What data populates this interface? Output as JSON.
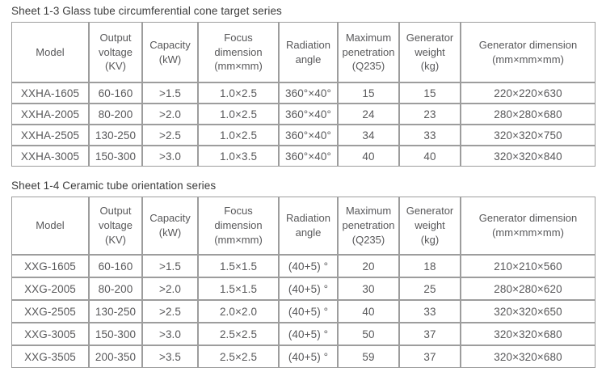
{
  "colors": {
    "border": "#9d9d9d",
    "cell_text": "#58585a",
    "title_text": "#3c3c3c",
    "background": "#ffffff"
  },
  "tables": [
    {
      "id": "sheet-1-3",
      "title": "Sheet 1-3 Glass tube circumferential cone target series",
      "columns": [
        {
          "key": "model",
          "lines": [
            "Model"
          ]
        },
        {
          "key": "voltage",
          "lines": [
            "Output",
            "voltage",
            "(KV)"
          ]
        },
        {
          "key": "capacity",
          "lines": [
            "Capacity",
            "(kW)"
          ]
        },
        {
          "key": "focus",
          "lines": [
            "Focus",
            "dimension",
            "(mm×mm)"
          ]
        },
        {
          "key": "angle",
          "lines": [
            "Radiation",
            "angle"
          ]
        },
        {
          "key": "penetration",
          "lines": [
            "Maximum",
            "penetration",
            "(Q235)"
          ]
        },
        {
          "key": "weight",
          "lines": [
            "Generator",
            "weight",
            "(kg)"
          ]
        },
        {
          "key": "dimension",
          "lines": [
            "Generator dimension",
            "(mm×mm×mm)"
          ]
        }
      ],
      "rows": [
        [
          "XXHA-1605",
          "60-160",
          ">1.5",
          "1.0×2.5",
          "360°×40°",
          "15",
          "15",
          "220×220×630"
        ],
        [
          "XXHA-2005",
          "80-200",
          ">2.0",
          "1.0×2.5",
          "360°×40°",
          "24",
          "23",
          "280×280×680"
        ],
        [
          "XXHA-2505",
          "130-250",
          ">2.5",
          "1.0×2.5",
          "360°×40°",
          "34",
          "33",
          "320×320×750"
        ],
        [
          "XXHA-3005",
          "150-300",
          ">3.0",
          "1.0×3.5",
          "360°×40°",
          "40",
          "40",
          "320×320×840"
        ]
      ]
    },
    {
      "id": "sheet-1-4",
      "title": "Sheet 1-4 Ceramic tube orientation series",
      "columns": [
        {
          "key": "model",
          "lines": [
            "Model"
          ]
        },
        {
          "key": "voltage",
          "lines": [
            "Output",
            "voltage",
            "(KV)"
          ]
        },
        {
          "key": "capacity",
          "lines": [
            "Capacity",
            "(kW)"
          ]
        },
        {
          "key": "focus",
          "lines": [
            "Focus",
            "dimension",
            "(mm×mm)"
          ]
        },
        {
          "key": "angle",
          "lines": [
            "Radiation",
            "angle"
          ]
        },
        {
          "key": "penetration",
          "lines": [
            "Maximum",
            "penetration",
            "(Q235)"
          ]
        },
        {
          "key": "weight",
          "lines": [
            "Generator",
            "weight",
            "(kg)"
          ]
        },
        {
          "key": "dimension",
          "lines": [
            "Generator dimension",
            "(mm×mm×mm)"
          ]
        }
      ],
      "rows": [
        [
          "XXG-1605",
          "60-160",
          ">1.5",
          "1.5×1.5",
          "(40+5) °",
          "20",
          "18",
          "210×210×560"
        ],
        [
          "XXG-2005",
          "80-200",
          ">2.0",
          "1.5×1.5",
          "(40+5) °",
          "30",
          "25",
          "280×280×620"
        ],
        [
          "XXG-2505",
          "130-250",
          ">2.5",
          "2.0×2.0",
          "(40+5) °",
          "40",
          "33",
          "320×320×650"
        ],
        [
          "XXG-3005",
          "150-300",
          ">3.0",
          "2.5×2.5",
          "(40+5) °",
          "50",
          "37",
          "320×320×680"
        ],
        [
          "XXG-3505",
          "200-350",
          ">3.5",
          "2.5×2.5",
          "(40+5) °",
          "59",
          "37",
          "320×320×680"
        ]
      ]
    }
  ]
}
